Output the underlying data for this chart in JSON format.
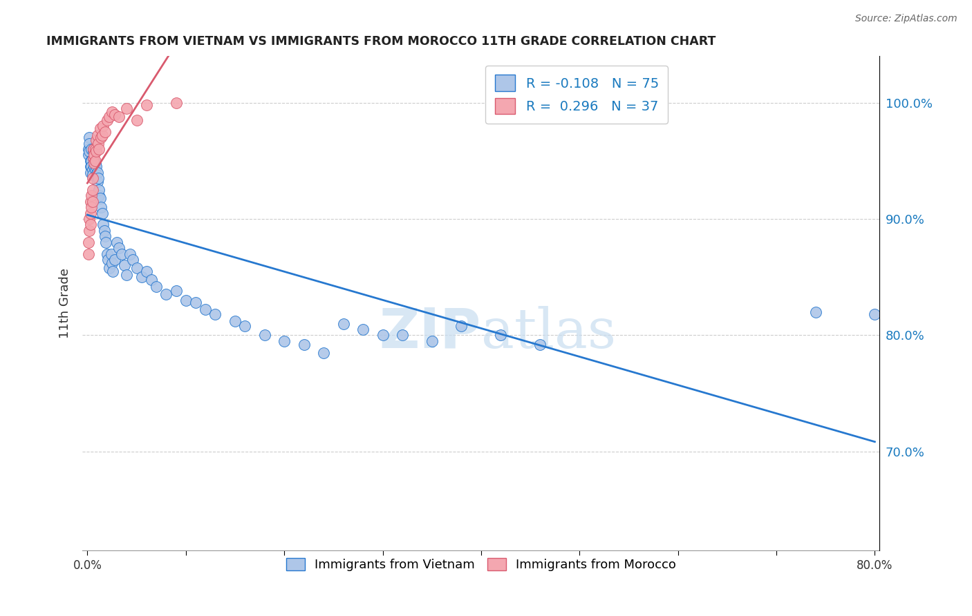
{
  "title": "IMMIGRANTS FROM VIETNAM VS IMMIGRANTS FROM MOROCCO 11TH GRADE CORRELATION CHART",
  "source": "Source: ZipAtlas.com",
  "ylabel": "11th Grade",
  "xlim": [
    -0.005,
    0.805
  ],
  "ylim": [
    0.615,
    1.04
  ],
  "ytick_vals": [
    0.7,
    0.8,
    0.9,
    1.0
  ],
  "ytick_labels": [
    "70.0%",
    "80.0%",
    "90.0%",
    "100.0%"
  ],
  "legend_labels": [
    "Immigrants from Vietnam",
    "Immigrants from Morocco"
  ],
  "R_vietnam": -0.108,
  "N_vietnam": 75,
  "R_morocco": 0.296,
  "N_morocco": 37,
  "color_vietnam": "#AEC6E8",
  "color_morocco": "#F4A7B0",
  "line_vietnam": "#2678CF",
  "line_morocco": "#D95A6E",
  "watermark_color": "#c8ddf0",
  "viet_x": [
    0.001,
    0.001,
    0.002,
    0.002,
    0.002,
    0.003,
    0.003,
    0.003,
    0.004,
    0.004,
    0.004,
    0.005,
    0.005,
    0.006,
    0.006,
    0.006,
    0.007,
    0.007,
    0.008,
    0.008,
    0.009,
    0.009,
    0.01,
    0.01,
    0.011,
    0.012,
    0.012,
    0.013,
    0.014,
    0.015,
    0.016,
    0.017,
    0.018,
    0.019,
    0.02,
    0.021,
    0.022,
    0.024,
    0.025,
    0.026,
    0.028,
    0.03,
    0.032,
    0.035,
    0.038,
    0.04,
    0.043,
    0.046,
    0.05,
    0.055,
    0.06,
    0.065,
    0.07,
    0.08,
    0.09,
    0.1,
    0.11,
    0.12,
    0.13,
    0.15,
    0.16,
    0.18,
    0.2,
    0.22,
    0.24,
    0.26,
    0.28,
    0.3,
    0.32,
    0.35,
    0.38,
    0.42,
    0.46,
    0.74,
    0.8
  ],
  "viet_y": [
    0.96,
    0.955,
    0.97,
    0.965,
    0.958,
    0.95,
    0.945,
    0.94,
    0.96,
    0.95,
    0.945,
    0.942,
    0.938,
    0.96,
    0.958,
    0.952,
    0.95,
    0.945,
    0.948,
    0.942,
    0.945,
    0.938,
    0.94,
    0.932,
    0.935,
    0.92,
    0.925,
    0.918,
    0.91,
    0.905,
    0.895,
    0.89,
    0.885,
    0.88,
    0.87,
    0.865,
    0.858,
    0.87,
    0.862,
    0.855,
    0.865,
    0.88,
    0.875,
    0.87,
    0.86,
    0.852,
    0.87,
    0.865,
    0.858,
    0.85,
    0.855,
    0.848,
    0.842,
    0.835,
    0.838,
    0.83,
    0.828,
    0.822,
    0.818,
    0.812,
    0.808,
    0.8,
    0.795,
    0.792,
    0.785,
    0.81,
    0.805,
    0.8,
    0.8,
    0.795,
    0.808,
    0.8,
    0.792,
    0.82,
    0.818
  ],
  "mor_x": [
    0.001,
    0.001,
    0.002,
    0.002,
    0.003,
    0.003,
    0.003,
    0.004,
    0.004,
    0.005,
    0.005,
    0.005,
    0.006,
    0.006,
    0.007,
    0.007,
    0.008,
    0.008,
    0.009,
    0.009,
    0.01,
    0.011,
    0.012,
    0.013,
    0.014,
    0.015,
    0.016,
    0.018,
    0.02,
    0.022,
    0.025,
    0.028,
    0.032,
    0.04,
    0.05,
    0.06,
    0.09
  ],
  "mor_y": [
    0.88,
    0.87,
    0.9,
    0.89,
    0.915,
    0.905,
    0.895,
    0.92,
    0.91,
    0.935,
    0.925,
    0.915,
    0.96,
    0.952,
    0.955,
    0.948,
    0.96,
    0.95,
    0.968,
    0.958,
    0.972,
    0.965,
    0.96,
    0.978,
    0.97,
    0.972,
    0.98,
    0.975,
    0.985,
    0.988,
    0.992,
    0.99,
    0.988,
    0.995,
    0.985,
    0.998,
    1.0
  ]
}
